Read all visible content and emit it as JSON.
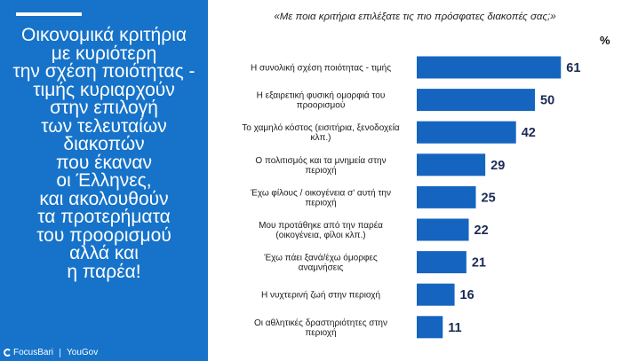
{
  "headline": "Οικονομικά κριτήρια\nμε κυριότερη\nτην σχέση ποιότητας -\nτιμής κυριαρχούν\nστην επιλογή\nτων τελευταίων\nδιακοπών\nπου έκαναν\nοι Έλληνες,\nκαι ακολουθούν\nτα προτερήματα\nτου προορισμού\nαλλά και\nη παρέα!",
  "logos": {
    "focusbari": "FocusBari",
    "yougov": "YouGov"
  },
  "colors": {
    "panel": "#1673c9",
    "bar": "#1565c0"
  },
  "chart_data": {
    "type": "bar",
    "orientation": "horizontal",
    "title": "«Με ποια κριτήρια επιλέξατε τις πιο πρόσφατες διακοπές σας;»",
    "unit_label": "%",
    "xlim": [
      0,
      70
    ],
    "categories": [
      [
        "Η συνολική σχέση ποιότητας - τιμής"
      ],
      [
        "Η εξαιρετική φυσική ομορφιά του",
        "προορισμού"
      ],
      [
        "Το χαμηλό κόστος (εισιτήρια, ξενοδοχεία",
        "κλπ.)"
      ],
      [
        "Ο πολιτισμός και τα μνημεία στην",
        "περιοχή"
      ],
      [
        "Έχω φίλους / οικογένεια σ' αυτή την",
        "περιοχή"
      ],
      [
        "Μου προτάθηκε από την παρέα",
        "(οικογένεια, φίλοι κλπ.)"
      ],
      [
        "Έχω πάει ξανά/έχω όμορφες",
        "αναμνήσεις"
      ],
      [
        "Η νυχτερινή ζωή στην περιοχή"
      ],
      [
        "Οι αθλητικές δραστηριότητες στην",
        "περιοχή"
      ]
    ],
    "values": [
      61,
      50,
      42,
      29,
      25,
      22,
      21,
      16,
      11
    ]
  }
}
